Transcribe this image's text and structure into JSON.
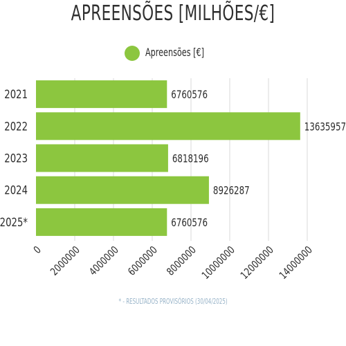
{
  "title": "APREENSÕES [MILHÕES/€]",
  "footnote": "* - RESULTADOS PROVISÓRIOS (30/04/2025)",
  "colors": {
    "bar": "#8cc63f",
    "grid": "#d9d9d9",
    "text": "#2b2b2b"
  },
  "chart_data": {
    "type": "bar",
    "orientation": "horizontal",
    "title": "APREENSÕES [MILHÕES/€]",
    "categories": [
      "2021",
      "2022",
      "2023",
      "2024",
      "2025*"
    ],
    "series": [
      {
        "name": "Apreensões [€]",
        "values": [
          6760576,
          13635957,
          6818196,
          8926287,
          6760576
        ]
      }
    ],
    "value_labels": [
      "6760576",
      "13635957",
      "6818196",
      "8926287",
      "6760576"
    ],
    "xlim": [
      0,
      14000000
    ],
    "x_ticks": [
      0,
      2000000,
      4000000,
      6000000,
      8000000,
      10000000,
      12000000,
      14000000
    ],
    "x_tick_labels": [
      "0",
      "2000000",
      "4000000",
      "6000000",
      "8000000",
      "10000000",
      "12000000",
      "14000000"
    ],
    "grid": true,
    "legend": "top-center"
  }
}
